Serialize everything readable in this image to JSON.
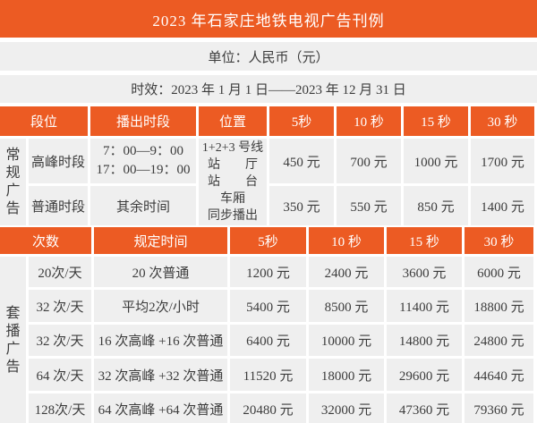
{
  "title": "2023 年石家庄地铁电视广告刊例",
  "meta": {
    "unit_label": "单位：人民币（元）",
    "validity_label": "时效：2023 年 1 月 1 日——2023 年 12 月 31 日"
  },
  "colors": {
    "accent_orange": "#ec5b23",
    "cell_background": "#efefef",
    "header_text": "#ffffff",
    "body_text": "#3c3c3c"
  },
  "regular_table": {
    "section_label": "常\n规\n广\n告",
    "headers": [
      "段位",
      "播出时段",
      "位置",
      "5秒",
      "10 秒",
      "15 秒",
      "30 秒"
    ],
    "location": "1+2+3 号线\n站　　厅\n站　　台\n车厢\n同步播出",
    "rows": [
      {
        "slot": "高峰时段",
        "time": "7：00—9：00\n17：00—19：00",
        "prices": [
          "450 元",
          "700 元",
          "1000 元",
          "1700 元"
        ]
      },
      {
        "slot": "普通时段",
        "time": "其余时间",
        "prices": [
          "350 元",
          "550 元",
          "850 元",
          "1400 元"
        ]
      }
    ]
  },
  "package_table": {
    "section_label": "套\n播\n广\n告",
    "headers": [
      "次数",
      "规定时间",
      "5秒",
      "10 秒",
      "15 秒",
      "30 秒"
    ],
    "rows": [
      {
        "count": "20次/天",
        "schedule": "20 次普通",
        "prices": [
          "1200 元",
          "2400 元",
          "3600 元",
          "6000 元"
        ]
      },
      {
        "count": "32 次/天",
        "schedule": "平均2次/小时",
        "prices": [
          "5400 元",
          "8500 元",
          "11400 元",
          "18800 元"
        ]
      },
      {
        "count": "32 次/天",
        "schedule": "16 次高峰 +16 次普通",
        "prices": [
          "6400 元",
          "10000 元",
          "14800 元",
          "24800 元"
        ]
      },
      {
        "count": "64 次/天",
        "schedule": "32 次高峰 +32 次普通",
        "prices": [
          "11520 元",
          "18000 元",
          "29600 元",
          "44640 元"
        ]
      },
      {
        "count": "128次/天",
        "schedule": "64 次高峰 +64 次普通",
        "prices": [
          "20480 元",
          "32000 元",
          "47360 元",
          "79360 元"
        ]
      }
    ]
  }
}
